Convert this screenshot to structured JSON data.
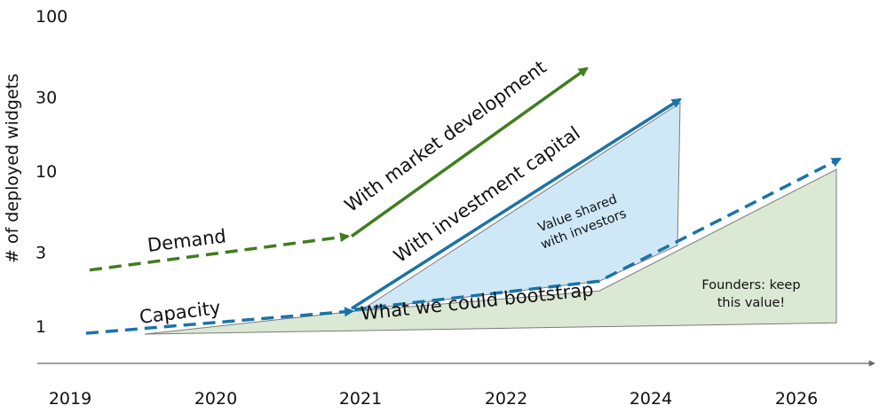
{
  "chart_data": {
    "type": "line",
    "title": "",
    "ylabel": "# of deployed widgets",
    "xlabel": "",
    "y_scale": "log",
    "ylim": [
      1,
      100
    ],
    "y_ticks": [
      "1",
      "3",
      "10",
      "30",
      "100"
    ],
    "x_ticks": [
      "2019",
      "2020",
      "2021",
      "2022",
      "2024",
      "2026"
    ],
    "grid": false,
    "colors": {
      "demand": "#3f7d1e",
      "capacity": "#1a73a8",
      "investors_area": "#cfe8f7",
      "founders_area": "#dbe8d4",
      "area_edge": "#7a7a7a"
    },
    "series": [
      {
        "name": "Demand",
        "style": "dashed",
        "x": [
          "2019",
          "2021"
        ],
        "y": [
          2.3,
          3.8
        ]
      },
      {
        "name": "With market development",
        "style": "solid",
        "x": [
          "2021",
          "2024"
        ],
        "y": [
          3.8,
          46
        ]
      },
      {
        "name": "Capacity",
        "style": "dashed",
        "x": [
          "2019",
          "2021"
        ],
        "y": [
          0.9,
          1.25
        ]
      },
      {
        "name": "With investment capital",
        "style": "solid",
        "x": [
          "2021",
          "2024"
        ],
        "y": [
          1.3,
          29
        ]
      },
      {
        "name": "What we could bootstrap",
        "style": "dashed",
        "x": [
          "2021",
          "2024",
          "2026"
        ],
        "y": [
          1.28,
          1.95,
          12
        ]
      }
    ],
    "areas": [
      {
        "label": "Value shared with investors",
        "label_lines": [
          "Value shared",
          "with investors"
        ]
      },
      {
        "label": "Founders: keep this value!",
        "label_lines": [
          "Founders: keep",
          "this value!"
        ]
      }
    ]
  }
}
